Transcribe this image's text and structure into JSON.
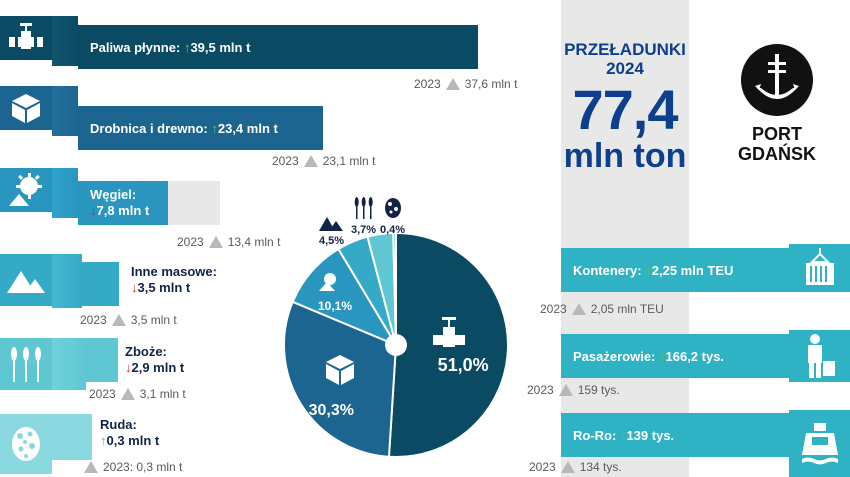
{
  "colors": {
    "dark_teal": "#0b4a63",
    "mid_blue": "#1c6590",
    "teal": "#2fb2c4",
    "light_teal": "#5fc7d2",
    "navy_text": "#0e3f8c",
    "grey_box": "#e8e8e8",
    "up_arrow": "#66c24a",
    "down_arrow": "#d8262d"
  },
  "headline": {
    "title_line1": "PRZEŁADUNKI",
    "title_line2": "2024",
    "value": "77,4",
    "unit": "mln ton"
  },
  "logo": {
    "line1": "PORT",
    "line2": "GDAŃSK"
  },
  "categories": [
    {
      "icon": "pipe-valve-icon",
      "name": "Paliwa płynne:",
      "arrow": "↑",
      "value": "39,5 mln t",
      "prev": "2023",
      "prev_value": "37,6 mln t"
    },
    {
      "icon": "cube-icon",
      "name": "Drobnica i drewno:",
      "arrow": "↑",
      "value": "23,4 mln t",
      "prev": "2023",
      "prev_value": "23,1 mln t"
    },
    {
      "icon": "excavator-wheel-icon",
      "name": "Węgiel:",
      "arrow": "↓",
      "value": "7,8 mln t",
      "prev": "2023",
      "prev_value": "13,4 mln t"
    },
    {
      "icon": "mountains-icon",
      "name": "Inne masowe:",
      "arrow": "↓",
      "value": "3,5 mln t",
      "prev": "2023",
      "prev_value": "3,5 mln t"
    },
    {
      "icon": "wheat-icon",
      "name": "Zboże:",
      "arrow": "↓",
      "value": "2,9 mln t",
      "prev": "2023",
      "prev_value": "3,1 mln t"
    },
    {
      "icon": "ore-icon",
      "name": "Ruda:",
      "arrow": "↑",
      "value": "0,3 mln t",
      "prev": "2023: 0,3 mln t"
    }
  ],
  "right_items": [
    {
      "icon": "container-icon",
      "name": "Kontenery:",
      "arrow": "↑",
      "value": "2,25 mln TEU",
      "prev": "2023",
      "prev_value": "2,05 mln TEU"
    },
    {
      "icon": "passenger-icon",
      "name": "Pasażerowie:",
      "arrow": "↑",
      "value": "166,2 tys.",
      "prev": "2023",
      "prev_value": "159 tys."
    },
    {
      "icon": "ferry-icon",
      "name": "Ro-Ro:",
      "arrow": "↑",
      "value": "139 tys.",
      "prev": "2023",
      "prev_value": "134 tys."
    }
  ],
  "chart_data": {
    "type": "pie",
    "values": [
      51.0,
      30.3,
      10.1,
      4.5,
      3.7,
      0.4
    ],
    "labels": [
      "51,0%",
      "30,3%",
      "10,1%",
      "4,5%",
      "3,7%",
      "0,4%"
    ],
    "colors": [
      "#0b4a63",
      "#1c6590",
      "#2a96c0",
      "#35aac7",
      "#5fc7d2",
      "#8ad8e0"
    ]
  }
}
